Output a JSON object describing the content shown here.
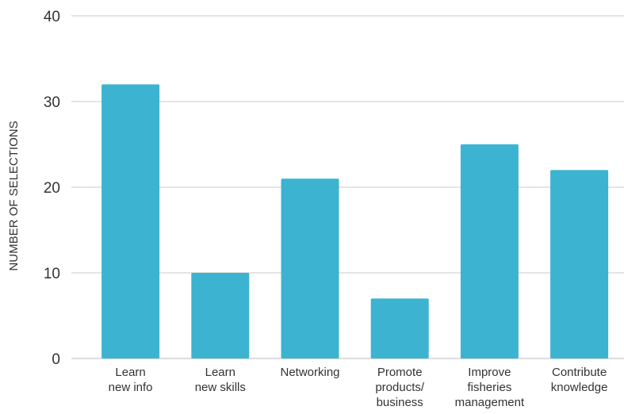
{
  "chart_data": {
    "type": "bar",
    "title": "",
    "xlabel": "",
    "ylabel": "NUMBER OF SELECTIONS",
    "categories": [
      [
        "Learn",
        "new info"
      ],
      [
        "Learn",
        "new skills"
      ],
      [
        "Networking"
      ],
      [
        "Promote",
        "products/",
        "business"
      ],
      [
        "Improve",
        "fisheries",
        "management"
      ],
      [
        "Contribute",
        "knowledge"
      ]
    ],
    "values": [
      32,
      10,
      21,
      7,
      25,
      22
    ],
    "ylim": [
      0,
      40
    ],
    "yticks": [
      0,
      10,
      20,
      30,
      40
    ],
    "grid": true,
    "bar_color": "#3cb3d1",
    "grid_color": "#c8c8c8"
  }
}
